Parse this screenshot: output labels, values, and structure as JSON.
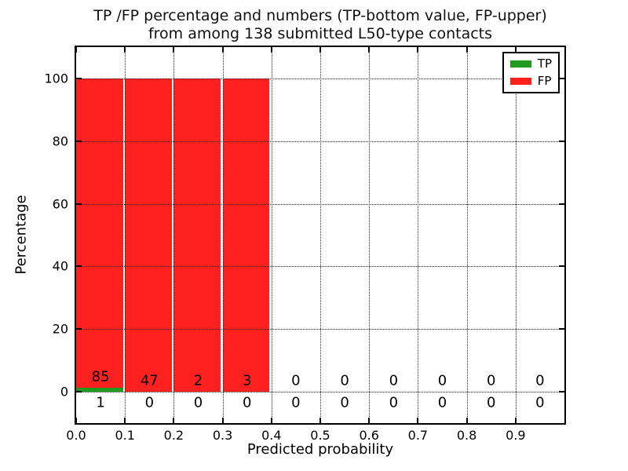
{
  "chart_data": {
    "type": "bar",
    "stacked": true,
    "title_lines": [
      "TP /FP percentage and numbers (TP-bottom value, FP-upper)",
      "from among 138 submitted L50-type contacts"
    ],
    "xlabel": "Predicted probability",
    "ylabel": "Percentage",
    "xlim": [
      0.0,
      1.0
    ],
    "ylim": [
      -10,
      110
    ],
    "x_ticks": [
      0.0,
      0.1,
      0.2,
      0.3,
      0.4,
      0.5,
      0.6,
      0.7,
      0.8,
      0.9
    ],
    "x_tick_labels": [
      "0.0",
      "0.1",
      "0.2",
      "0.3",
      "0.4",
      "0.5",
      "0.6",
      "0.7",
      "0.8",
      "0.9"
    ],
    "y_ticks": [
      0,
      20,
      40,
      60,
      80,
      100
    ],
    "y_tick_labels": [
      "0",
      "20",
      "40",
      "60",
      "80",
      "100"
    ],
    "bin_starts": [
      0.0,
      0.1,
      0.2,
      0.3,
      0.4,
      0.5,
      0.6,
      0.7,
      0.8,
      0.9
    ],
    "bin_width": 0.1,
    "bar_rel_width": 0.96,
    "grid": {
      "style": "dotted",
      "axes": "both",
      "color": "#222222"
    },
    "legend": {
      "position": "upper right",
      "entries": [
        "TP",
        "FP"
      ]
    },
    "series": [
      {
        "name": "TP",
        "color": "#1f9c1f",
        "counts": [
          1,
          0,
          0,
          0,
          0,
          0,
          0,
          0,
          0,
          0
        ],
        "percent_heights": [
          1.16,
          0,
          0,
          0,
          0,
          0,
          0,
          0,
          0,
          0
        ]
      },
      {
        "name": "FP",
        "color": "#ff2020",
        "counts": [
          85,
          47,
          2,
          3,
          0,
          0,
          0,
          0,
          0,
          0
        ],
        "percent_heights": [
          98.84,
          100,
          100,
          100,
          0,
          0,
          0,
          0,
          0,
          0
        ]
      }
    ],
    "count_label_rows": {
      "fp_row_offset_above_baseline": 3.5,
      "tp_row_center_value": -3.4
    },
    "total_contacts": 138
  }
}
